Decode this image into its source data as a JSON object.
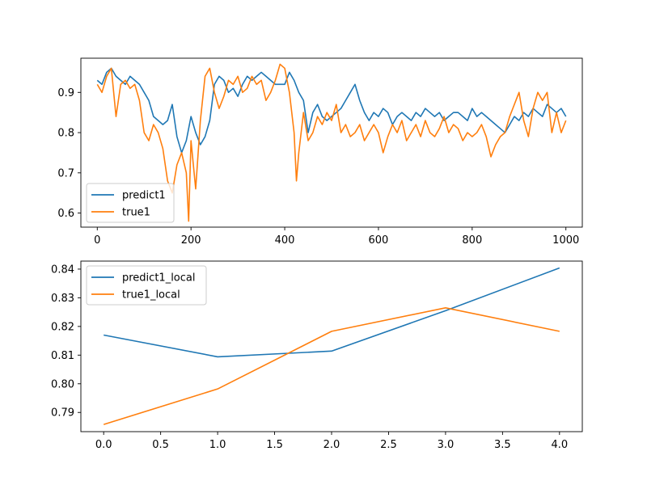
{
  "chart_data": [
    {
      "type": "line",
      "title": "",
      "xlabel": "",
      "ylabel": "",
      "xlim": [
        -35,
        1035
      ],
      "ylim": [
        0.565,
        0.985
      ],
      "xticks": [
        0,
        200,
        400,
        600,
        800,
        1000
      ],
      "yticks": [
        0.6,
        0.7,
        0.8,
        0.9
      ],
      "xtick_labels": [
        "0",
        "200",
        "400",
        "600",
        "800",
        "1000"
      ],
      "ytick_labels": [
        "0.6",
        "0.7",
        "0.8",
        "0.9"
      ],
      "grid": false,
      "legend_position": "lower-left",
      "series": [
        {
          "name": "predict1",
          "color": "#1f77b4",
          "x": [
            0,
            10,
            20,
            30,
            40,
            50,
            60,
            70,
            80,
            90,
            100,
            110,
            120,
            130,
            140,
            150,
            160,
            170,
            180,
            190,
            200,
            210,
            220,
            230,
            240,
            250,
            260,
            270,
            280,
            290,
            300,
            310,
            320,
            330,
            340,
            350,
            360,
            370,
            380,
            390,
            400,
            410,
            420,
            430,
            440,
            450,
            460,
            470,
            480,
            490,
            500,
            510,
            520,
            530,
            540,
            550,
            560,
            570,
            580,
            590,
            600,
            610,
            620,
            630,
            640,
            650,
            660,
            670,
            680,
            690,
            700,
            710,
            720,
            730,
            740,
            750,
            760,
            770,
            780,
            790,
            800,
            810,
            820,
            830,
            840,
            850,
            860,
            870,
            880,
            890,
            900,
            910,
            920,
            930,
            940,
            950,
            960,
            970,
            980,
            990,
            1000
          ],
          "y": [
            0.93,
            0.92,
            0.95,
            0.96,
            0.94,
            0.93,
            0.92,
            0.94,
            0.93,
            0.92,
            0.9,
            0.88,
            0.84,
            0.83,
            0.82,
            0.83,
            0.87,
            0.79,
            0.75,
            0.78,
            0.84,
            0.8,
            0.77,
            0.79,
            0.83,
            0.92,
            0.94,
            0.93,
            0.9,
            0.91,
            0.89,
            0.92,
            0.94,
            0.93,
            0.94,
            0.95,
            0.94,
            0.93,
            0.92,
            0.92,
            0.92,
            0.95,
            0.93,
            0.9,
            0.88,
            0.8,
            0.85,
            0.87,
            0.84,
            0.83,
            0.84,
            0.85,
            0.86,
            0.88,
            0.9,
            0.92,
            0.88,
            0.85,
            0.83,
            0.85,
            0.84,
            0.86,
            0.85,
            0.82,
            0.84,
            0.85,
            0.84,
            0.83,
            0.85,
            0.84,
            0.86,
            0.85,
            0.84,
            0.85,
            0.83,
            0.84,
            0.85,
            0.85,
            0.84,
            0.83,
            0.86,
            0.84,
            0.85,
            0.84,
            0.83,
            0.82,
            0.81,
            0.8,
            0.82,
            0.84,
            0.83,
            0.85,
            0.84,
            0.86,
            0.85,
            0.84,
            0.87,
            0.86,
            0.85,
            0.86,
            0.84
          ]
        },
        {
          "name": "true1",
          "color": "#ff7f0e",
          "x": [
            0,
            10,
            20,
            30,
            40,
            50,
            60,
            70,
            80,
            90,
            100,
            110,
            120,
            130,
            140,
            150,
            160,
            170,
            180,
            190,
            195,
            200,
            210,
            220,
            230,
            240,
            250,
            260,
            270,
            280,
            290,
            300,
            310,
            320,
            330,
            340,
            350,
            360,
            370,
            380,
            390,
            400,
            410,
            420,
            425,
            430,
            440,
            450,
            460,
            470,
            480,
            490,
            500,
            510,
            520,
            530,
            540,
            550,
            560,
            570,
            580,
            590,
            600,
            610,
            620,
            630,
            640,
            650,
            660,
            670,
            680,
            690,
            700,
            710,
            720,
            730,
            740,
            750,
            760,
            770,
            780,
            790,
            800,
            810,
            820,
            830,
            840,
            850,
            860,
            870,
            880,
            890,
            900,
            910,
            920,
            930,
            940,
            950,
            960,
            970,
            980,
            990,
            1000
          ],
          "y": [
            0.92,
            0.9,
            0.94,
            0.96,
            0.84,
            0.92,
            0.93,
            0.91,
            0.92,
            0.88,
            0.8,
            0.78,
            0.82,
            0.8,
            0.76,
            0.68,
            0.65,
            0.72,
            0.75,
            0.7,
            0.58,
            0.78,
            0.66,
            0.83,
            0.94,
            0.96,
            0.9,
            0.86,
            0.89,
            0.93,
            0.92,
            0.94,
            0.9,
            0.91,
            0.94,
            0.92,
            0.93,
            0.88,
            0.9,
            0.93,
            0.97,
            0.96,
            0.9,
            0.8,
            0.68,
            0.75,
            0.85,
            0.78,
            0.8,
            0.84,
            0.82,
            0.85,
            0.83,
            0.87,
            0.8,
            0.82,
            0.79,
            0.8,
            0.82,
            0.78,
            0.8,
            0.82,
            0.8,
            0.75,
            0.79,
            0.82,
            0.8,
            0.83,
            0.78,
            0.8,
            0.82,
            0.79,
            0.83,
            0.8,
            0.79,
            0.81,
            0.84,
            0.8,
            0.82,
            0.81,
            0.78,
            0.8,
            0.79,
            0.8,
            0.82,
            0.79,
            0.74,
            0.77,
            0.79,
            0.8,
            0.84,
            0.87,
            0.9,
            0.83,
            0.79,
            0.86,
            0.9,
            0.88,
            0.9,
            0.8,
            0.85,
            0.8,
            0.83
          ]
        }
      ]
    },
    {
      "type": "line",
      "title": "",
      "xlabel": "",
      "ylabel": "",
      "xlim": [
        -0.2,
        4.2
      ],
      "ylim": [
        0.7833,
        0.8428
      ],
      "xticks": [
        0,
        0.5,
        1,
        1.5,
        2,
        2.5,
        3,
        3.5,
        4
      ],
      "yticks": [
        0.79,
        0.8,
        0.81,
        0.82,
        0.83,
        0.84
      ],
      "xtick_labels": [
        "0.0",
        "0.5",
        "1.0",
        "1.5",
        "2.0",
        "2.5",
        "3.0",
        "3.5",
        "4.0"
      ],
      "ytick_labels": [
        "0.79",
        "0.80",
        "0.81",
        "0.82",
        "0.83",
        "0.84"
      ],
      "grid": false,
      "legend_position": "upper-left",
      "series": [
        {
          "name": "predict1_local",
          "color": "#1f77b4",
          "x": [
            0,
            1,
            2,
            3,
            4
          ],
          "y": [
            0.817,
            0.8094,
            0.8114,
            0.8255,
            0.8404
          ]
        },
        {
          "name": "true1_local",
          "color": "#ff7f0e",
          "x": [
            0,
            1,
            2,
            3,
            4
          ],
          "y": [
            0.7858,
            0.7982,
            0.8183,
            0.8265,
            0.8183
          ]
        }
      ]
    }
  ]
}
